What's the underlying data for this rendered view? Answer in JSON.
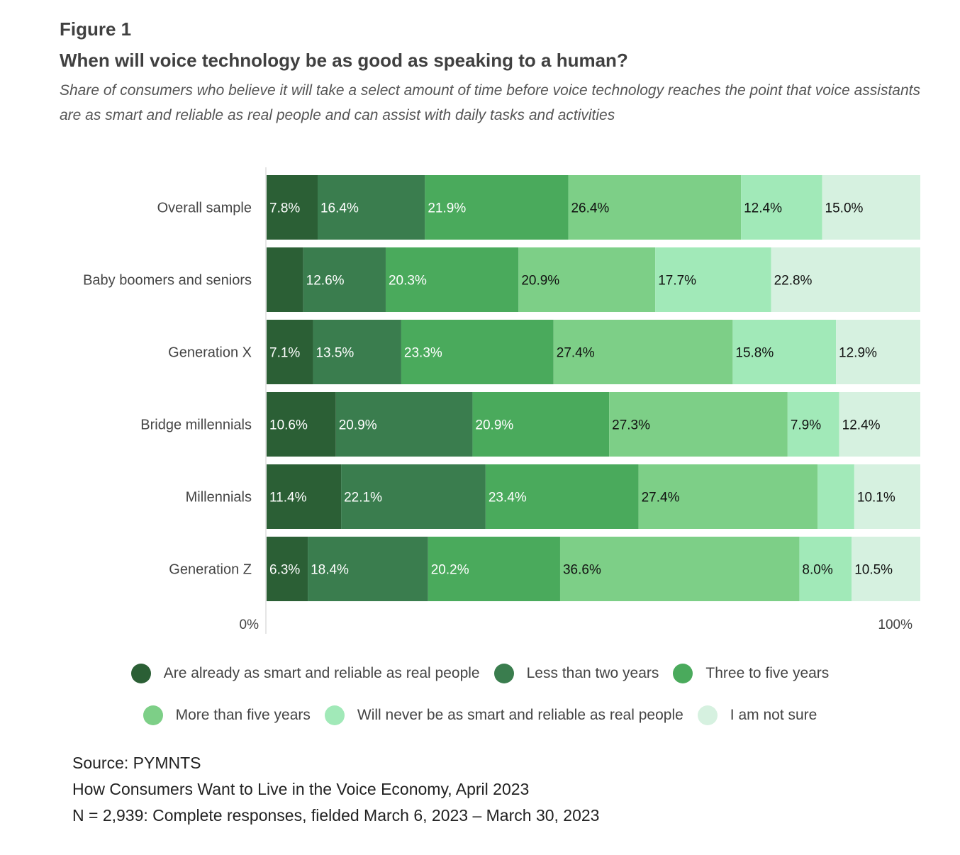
{
  "figure_label": "Figure 1",
  "title": "When will voice technology be as good as speaking to a human?",
  "subtitle": "Share of consumers who believe it will take a select amount of time before voice technology reaches the point that voice assistants are as smart and reliable as real people and can assist with daily tasks and activities",
  "chart_data": {
    "type": "bar",
    "orientation": "horizontal",
    "stacked": true,
    "categories": [
      "Overall sample",
      "Baby boomers and seniors",
      "Generation X",
      "Bridge millennials",
      "Millennials",
      "Generation Z"
    ],
    "series": [
      {
        "name": "Are already as smart and reliable as real people",
        "values": [
          7.8,
          5.6,
          7.1,
          10.6,
          11.4,
          6.3
        ],
        "labels": [
          "7.8%",
          "",
          "7.1%",
          "10.6%",
          "11.4%",
          "6.3%"
        ],
        "color": "#2b5f35"
      },
      {
        "name": "Less than two years",
        "values": [
          16.4,
          12.6,
          13.5,
          20.9,
          22.1,
          18.4
        ],
        "labels": [
          "16.4%",
          "12.6%",
          "13.5%",
          "20.9%",
          "22.1%",
          "18.4%"
        ],
        "color": "#3a7d4e"
      },
      {
        "name": "Three to five years",
        "values": [
          21.9,
          20.3,
          23.3,
          20.9,
          23.4,
          20.2
        ],
        "labels": [
          "21.9%",
          "20.3%",
          "23.3%",
          "20.9%",
          "23.4%",
          "20.2%"
        ],
        "color": "#4aaa5c"
      },
      {
        "name": "More than five years",
        "values": [
          26.4,
          20.9,
          27.4,
          27.3,
          27.4,
          36.6
        ],
        "labels": [
          "26.4%",
          "20.9%",
          "27.4%",
          "27.3%",
          "27.4%",
          "36.6%"
        ],
        "color": "#7dcf87"
      },
      {
        "name": "Will never be as smart and reliable as real people",
        "values": [
          12.4,
          17.7,
          15.8,
          7.9,
          5.6,
          8.0
        ],
        "labels": [
          "12.4%",
          "17.7%",
          "15.8%",
          "7.9%",
          "",
          "8.0%"
        ],
        "color": "#a1e9b8"
      },
      {
        "name": "I am not sure",
        "values": [
          15.0,
          22.8,
          12.9,
          12.4,
          10.1,
          10.5
        ],
        "labels": [
          "15.0%",
          "22.8%",
          "12.9%",
          "12.4%",
          "10.1%",
          "10.5%"
        ],
        "color": "#d6f1e0"
      }
    ],
    "label_colors": [
      "#ffffff",
      "#ffffff",
      "#ffffff",
      "#111111",
      "#111111",
      "#111111"
    ],
    "xlim": [
      0,
      100
    ],
    "x_tick_labels": [
      "0%",
      "100%"
    ],
    "legend_position": "bottom"
  },
  "source": {
    "line1": "Source: PYMNTS",
    "line2": "How Consumers Want to Live in the Voice Economy, April 2023",
    "line3": "N = 2,939: Complete responses, fielded March 6, 2023 – March 30, 2023"
  }
}
